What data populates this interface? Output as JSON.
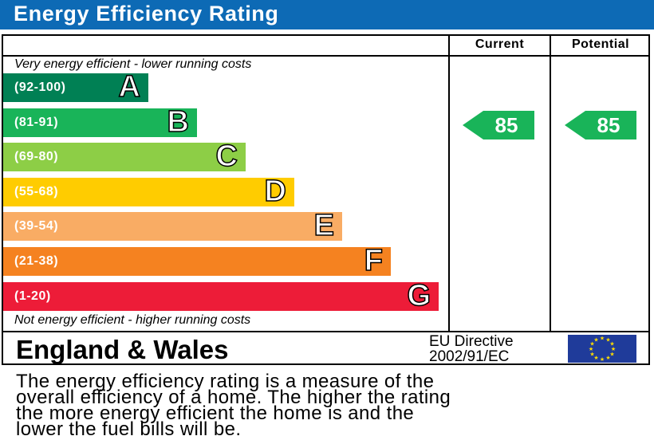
{
  "title": "Energy Efficiency Rating",
  "columns": {
    "current": "Current",
    "potential": "Potential"
  },
  "top_note": "Very energy efficient - lower running costs",
  "bottom_note": "Not energy efficient - higher running costs",
  "bands": [
    {
      "range": "(92-100)",
      "letter": "A",
      "color": "#008054"
    },
    {
      "range": "(81-91)",
      "letter": "B",
      "color": "#19b459"
    },
    {
      "range": "(69-80)",
      "letter": "C",
      "color": "#8dce46"
    },
    {
      "range": "(55-68)",
      "letter": "D",
      "color": "#ffcc00"
    },
    {
      "range": "(39-54)",
      "letter": "E",
      "color": "#f9ac64"
    },
    {
      "range": "(21-38)",
      "letter": "F",
      "color": "#f58220"
    },
    {
      "range": "(1-20)",
      "letter": "G",
      "color": "#ed1c38"
    }
  ],
  "ratings": {
    "current": {
      "value": "85",
      "band": "B",
      "color": "#19b459"
    },
    "potential": {
      "value": "85",
      "band": "B",
      "color": "#19b459"
    }
  },
  "footer": {
    "country": "England & Wales",
    "directive_line1": "EU Directive",
    "directive_line2": "2002/91/EC",
    "flag_icon": "eu-flag-icon"
  },
  "description": [
    "The energy efficiency rating is a measure of the",
    "overall efficiency of a home. The higher the rating",
    "the more energy efficient the home is and the",
    "lower the fuel bills will be."
  ]
}
